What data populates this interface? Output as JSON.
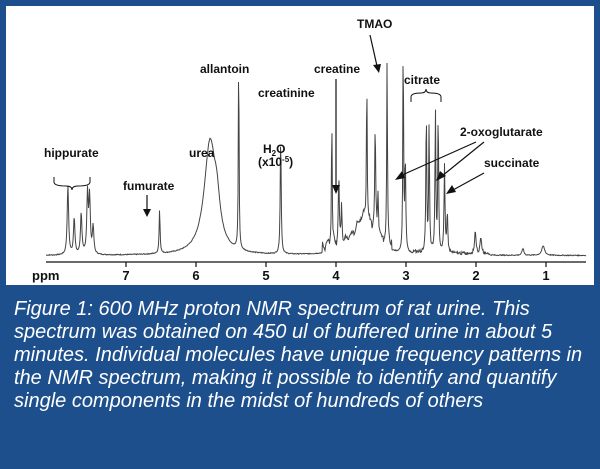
{
  "chart_data": {
    "type": "line",
    "title": "",
    "xlabel": "ppm",
    "ylabel": "",
    "x_reversed": true,
    "xlim": [
      0.5,
      9.0
    ],
    "ticks": [
      7,
      6,
      5,
      4,
      3,
      2,
      1
    ],
    "peaks": [
      {
        "ppm": 7.83,
        "height": 0.3,
        "width": 0.012
      },
      {
        "ppm": 7.74,
        "height": 0.16,
        "width": 0.012
      },
      {
        "ppm": 7.64,
        "height": 0.18,
        "width": 0.012
      },
      {
        "ppm": 7.55,
        "height": 0.26,
        "width": 0.012
      },
      {
        "ppm": 7.52,
        "height": 0.24,
        "width": 0.012
      },
      {
        "ppm": 7.47,
        "height": 0.12,
        "width": 0.012
      },
      {
        "ppm": 6.52,
        "height": 0.19,
        "width": 0.008
      },
      {
        "ppm": 5.8,
        "height": 0.48,
        "width": 0.1
      },
      {
        "ppm": 5.7,
        "height": 0.12,
        "width": 0.05
      },
      {
        "ppm": 5.39,
        "height": 0.88,
        "width": 0.006
      },
      {
        "ppm": 4.79,
        "height": 0.52,
        "width": 0.008
      },
      {
        "ppm": 4.06,
        "height": 0.58,
        "width": 0.006
      },
      {
        "ppm": 3.96,
        "height": 0.29,
        "width": 0.008
      },
      {
        "ppm": 3.92,
        "height": 0.16,
        "width": 0.008
      },
      {
        "ppm": 3.6,
        "height": 0.14,
        "width": 0.15
      },
      {
        "ppm": 3.56,
        "height": 0.64,
        "width": 0.006
      },
      {
        "ppm": 3.44,
        "height": 0.45,
        "width": 0.008
      },
      {
        "ppm": 3.4,
        "height": 0.2,
        "width": 0.008
      },
      {
        "ppm": 3.27,
        "height": 0.8,
        "width": 0.006
      },
      {
        "ppm": 3.04,
        "height": 0.96,
        "width": 0.006
      },
      {
        "ppm": 3.01,
        "height": 0.4,
        "width": 0.008
      },
      {
        "ppm": 2.71,
        "height": 0.62,
        "width": 0.007
      },
      {
        "ppm": 2.67,
        "height": 0.55,
        "width": 0.007
      },
      {
        "ppm": 2.58,
        "height": 0.62,
        "width": 0.007
      },
      {
        "ppm": 2.54,
        "height": 0.62,
        "width": 0.007
      },
      {
        "ppm": 2.45,
        "height": 0.37,
        "width": 0.008
      },
      {
        "ppm": 2.41,
        "height": 0.18,
        "width": 0.008
      },
      {
        "ppm": 2.01,
        "height": 0.1,
        "width": 0.012
      },
      {
        "ppm": 1.93,
        "height": 0.07,
        "width": 0.012
      },
      {
        "ppm": 1.33,
        "height": 0.03,
        "width": 0.015
      },
      {
        "ppm": 1.04,
        "height": 0.04,
        "width": 0.025
      }
    ],
    "annotations": [
      {
        "text": "hippurate",
        "ppm": 7.64
      },
      {
        "text": "fumurate",
        "ppm": 6.55
      },
      {
        "text": "urea",
        "ppm": 5.8
      },
      {
        "text": "allantoin",
        "ppm": 5.39
      },
      {
        "text": "H2O",
        "ppm": 4.79
      },
      {
        "text": "(x10-5)",
        "ppm": 4.79
      },
      {
        "text": "creatinine",
        "ppm": 4.06
      },
      {
        "text": "creatine",
        "ppm": 3.92
      },
      {
        "text": "TMAO",
        "ppm": 3.27
      },
      {
        "text": "citrate",
        "ppm": 2.62
      },
      {
        "text": "2-oxoglutarate",
        "ppm": 3.01
      },
      {
        "text": "succinate",
        "ppm": 2.41
      }
    ]
  },
  "labels": {
    "hippurate": "hippurate",
    "fumurate": "fumurate",
    "urea": "urea",
    "allantoin": "allantoin",
    "h2o_main": "H",
    "h2o_sub": "2",
    "h2o_tail": "O",
    "h2o_scale_pre": "(x10",
    "h2o_scale_sup": "-5",
    "h2o_scale_post": ")",
    "creatinine": "creatinine",
    "creatine": "creatine",
    "tmao": "TMAO",
    "citrate": "citrate",
    "oxoglutarate": "2-oxoglutarate",
    "succinate": "succinate"
  },
  "caption": "Figure 1: 600 MHz proton NMR spectrum of rat urine. This spectrum was obtained on 450 ul of buffered urine in about 5 minutes. Individual molecules have unique frequency patterns in the NMR spectrum, making it possible to identify and quantify single components in the midst of hundreds of others",
  "colors": {
    "frame": "#1d4f8c",
    "panel": "#ffffff",
    "trace": "#444444",
    "text": "#111111"
  }
}
